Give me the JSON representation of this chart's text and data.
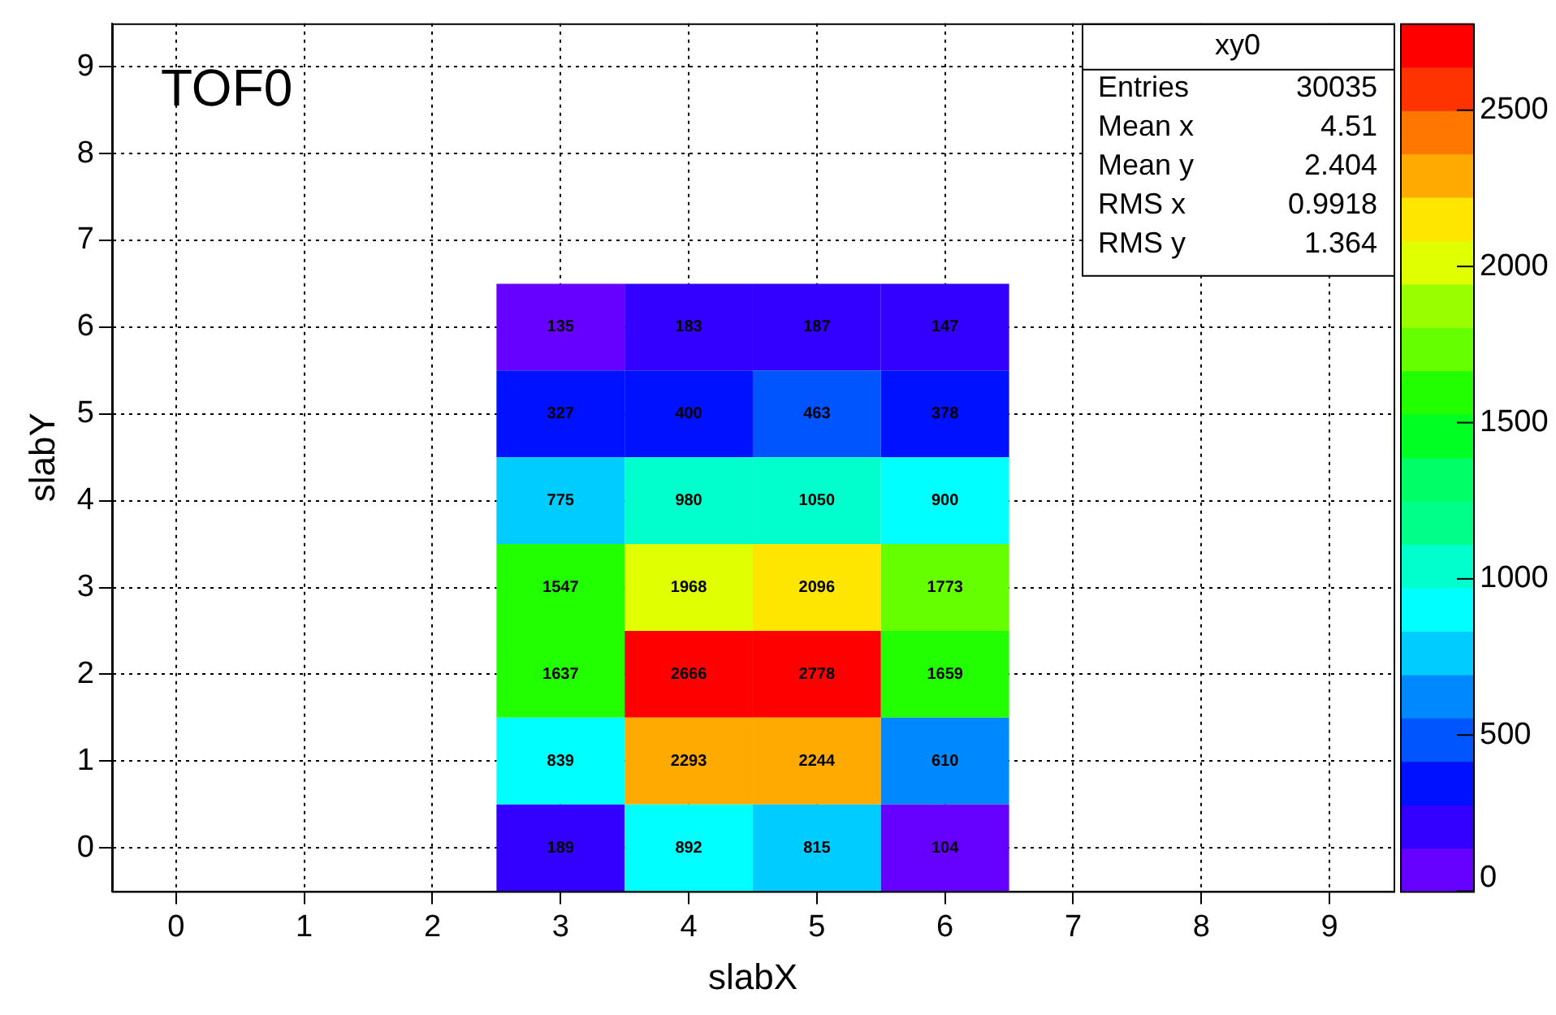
{
  "chart_data": {
    "type": "heatmap",
    "title": "TOF0",
    "xlabel": "slabX",
    "ylabel": "slabY",
    "categories": [
      "0",
      "1",
      "2",
      "3",
      "4",
      "5",
      "6",
      "7",
      "8",
      "9"
    ],
    "y_categories": [
      "9",
      "8",
      "7",
      "6",
      "5",
      "4",
      "3",
      "2",
      "1",
      "0"
    ],
    "cells": [
      [
        null,
        null,
        null,
        null,
        null,
        null,
        null,
        null,
        null,
        null
      ],
      [
        null,
        null,
        null,
        null,
        null,
        null,
        null,
        null,
        null,
        null
      ],
      [
        null,
        null,
        null,
        null,
        null,
        null,
        null,
        null,
        null,
        null
      ],
      [
        null,
        null,
        null,
        135,
        183,
        187,
        147,
        null,
        null,
        null
      ],
      [
        null,
        null,
        null,
        327,
        400,
        463,
        378,
        null,
        null,
        null
      ],
      [
        null,
        null,
        null,
        775,
        980,
        1050,
        900,
        null,
        null,
        null
      ],
      [
        null,
        null,
        null,
        1547,
        1968,
        2096,
        1773,
        null,
        null,
        null
      ],
      [
        null,
        null,
        null,
        1637,
        2666,
        2778,
        1659,
        null,
        null,
        null
      ],
      [
        null,
        null,
        null,
        839,
        2293,
        2244,
        610,
        null,
        null,
        null
      ],
      [
        null,
        null,
        null,
        189,
        892,
        815,
        104,
        null,
        null,
        null
      ]
    ],
    "clim": [
      0,
      2778
    ],
    "cticks": [
      0,
      500,
      1000,
      1500,
      2000,
      2500
    ],
    "data_labels": true,
    "grid": true,
    "annotations": [
      "xy0",
      "Entries 30035",
      "Mean x 4.51",
      "Mean y 2.404",
      "RMS x 0.9918",
      "RMS y 1.364"
    ]
  }
}
